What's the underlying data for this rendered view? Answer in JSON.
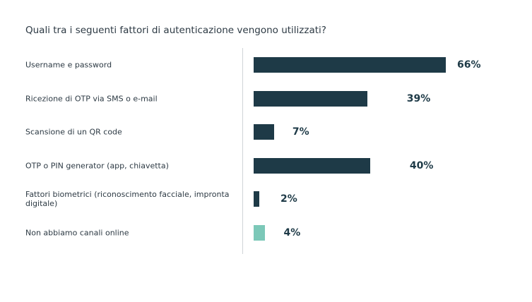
{
  "chart_data": {
    "type": "bar",
    "orientation": "horizontal",
    "title": "Quali tra i seguenti fattori di autenticazione vengono utilizzati?",
    "xlabel": "",
    "ylabel": "",
    "categories": [
      "Username e password",
      "Ricezione di OTP via SMS o e-mail",
      "Scansione di un QR code",
      "OTP o PIN generator (app, chiavetta)",
      "Fattori biometrici (riconoscimento facciale, impronta digitale)",
      "Non abbiamo canali online"
    ],
    "values": [
      66,
      39,
      7,
      40,
      2,
      4
    ],
    "value_labels": [
      "66%",
      "39%",
      "7%",
      "40%",
      "2%",
      "4%"
    ],
    "unit": "%",
    "colors": [
      "#1e3a47",
      "#1e3a47",
      "#1e3a47",
      "#1e3a47",
      "#1e3a47",
      "#7cc8b8"
    ],
    "xlim": [
      0,
      100
    ],
    "grid": false,
    "legend": "none"
  }
}
